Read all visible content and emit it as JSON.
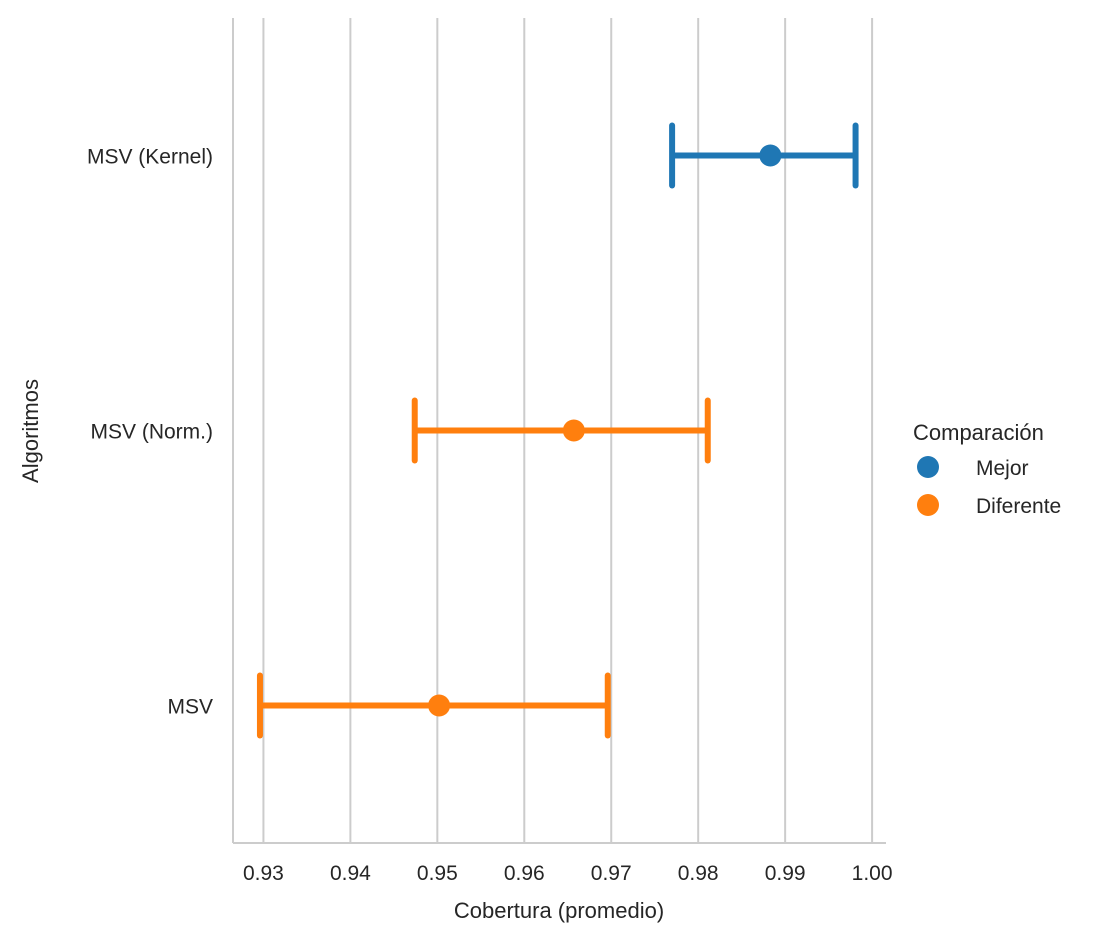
{
  "chart_data": {
    "type": "scatter",
    "title": "",
    "xlabel": "Cobertura (promedio)",
    "ylabel": "Algoritmos",
    "xlim": [
      0.9265,
      1.0016
    ],
    "xticks": [
      0.93,
      0.94,
      0.95,
      0.96,
      0.97,
      0.98,
      0.99,
      1.0
    ],
    "xtick_labels": [
      "0.93",
      "0.94",
      "0.95",
      "0.96",
      "0.97",
      "0.98",
      "0.99",
      "1.00"
    ],
    "categories": [
      "MSV (Kernel)",
      "MSV (Norm.)",
      "MSV"
    ],
    "grid": "vertical",
    "legend": {
      "title": "Comparación",
      "placement": "right",
      "entries": [
        {
          "label": "Mejor",
          "color": "#1f77b4"
        },
        {
          "label": "Diferente",
          "color": "#ff7f0e"
        }
      ]
    },
    "points": [
      {
        "category": "MSV (Kernel)",
        "value": 0.9883,
        "ci_low": 0.977,
        "ci_high": 0.9981,
        "group": "Mejor",
        "color": "#1f77b4"
      },
      {
        "category": "MSV (Norm.)",
        "value": 0.9657,
        "ci_low": 0.9474,
        "ci_high": 0.9811,
        "group": "Diferente",
        "color": "#ff7f0e"
      },
      {
        "category": "MSV",
        "value": 0.9502,
        "ci_low": 0.9296,
        "ci_high": 0.9696,
        "group": "Diferente",
        "color": "#ff7f0e"
      }
    ]
  }
}
